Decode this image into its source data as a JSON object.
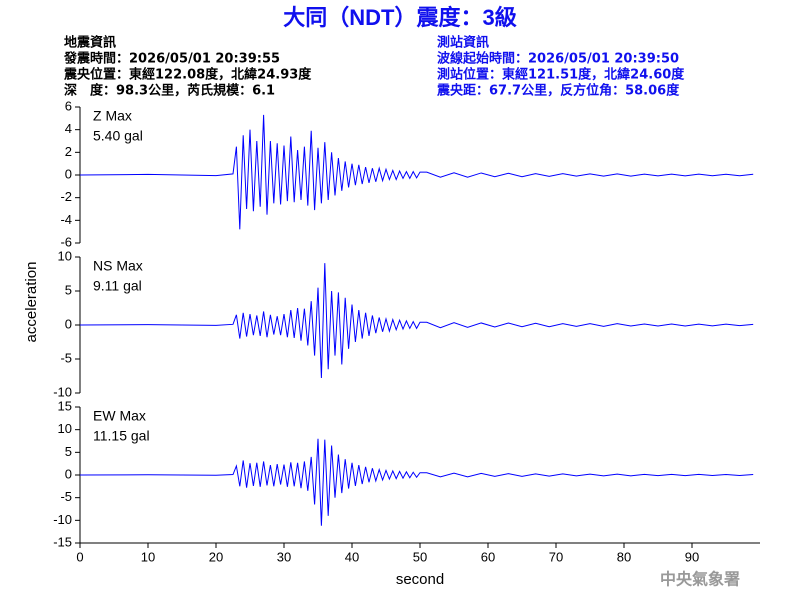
{
  "title": "大同（NDT）震度：3級",
  "event_info": {
    "heading": "地震資訊",
    "lines": [
      "發震時間：2026/05/01 20:39:55",
      "震央位置：東經122.08度，北緯24.93度",
      "深　度：98.3公里，芮氏規模：6.1"
    ]
  },
  "station_info": {
    "heading": "測站資訊",
    "lines": [
      "波線起始時間：2026/05/01 20:39:50",
      "測站位置：東經121.51度，北緯24.60度",
      "震央距：67.7公里，反方位角：58.06度"
    ]
  },
  "y_label": "acceleration",
  "credit": "中央氣象署",
  "chart_data": [
    {
      "type": "line",
      "annotation_name": "Z Max",
      "annotation_value": "5.40 gal",
      "color": "#0000ff",
      "annotation_color": "#ee0000",
      "xlim": [
        0,
        100
      ],
      "ylim": [
        -6,
        6
      ],
      "yticks": [
        -6,
        -4,
        -2,
        0,
        2,
        4,
        6
      ],
      "x": [
        0,
        10,
        20,
        22.5,
        23,
        23.5,
        24,
        24.5,
        25,
        25.5,
        26,
        26.5,
        27,
        27.5,
        28,
        28.5,
        29,
        29.5,
        30,
        30.5,
        31,
        31.5,
        32,
        32.5,
        33,
        33.5,
        34,
        34.5,
        35,
        35.5,
        36,
        36.5,
        37,
        37.5,
        38,
        38.5,
        39,
        39.5,
        40,
        40.5,
        41,
        41.5,
        42,
        42.5,
        43,
        43.5,
        44,
        44.5,
        45,
        45.5,
        46,
        46.5,
        47,
        47.5,
        48,
        48.5,
        49,
        49.5,
        50,
        51,
        53,
        55,
        57,
        59,
        61,
        63,
        65,
        67,
        69,
        71,
        73,
        75,
        77,
        79,
        81,
        83,
        85,
        87,
        89,
        91,
        93,
        95,
        97,
        99
      ],
      "values": [
        0,
        0.05,
        -0.05,
        0.1,
        2.5,
        -4.8,
        3.5,
        -3,
        4,
        -3.2,
        3,
        -2.8,
        5.3,
        -3.5,
        3,
        -2.5,
        2.8,
        -2.6,
        2.6,
        -2.3,
        3.4,
        -2.4,
        2.2,
        -2.2,
        2.5,
        -2.7,
        3.9,
        -3.1,
        2.4,
        -2.5,
        2.9,
        -2.2,
        2,
        -1.8,
        1.5,
        -1.4,
        1.2,
        -1.1,
        1,
        -0.9,
        0.9,
        -0.8,
        0.7,
        -0.7,
        0.6,
        -0.6,
        0.6,
        -0.5,
        0.5,
        -0.4,
        0.4,
        -0.4,
        0.35,
        -0.3,
        0.3,
        -0.3,
        0.3,
        -0.25,
        0.25,
        0.25,
        -0.2,
        0.2,
        -0.2,
        0.18,
        -0.15,
        0.15,
        -0.15,
        0.12,
        -0.12,
        0.12,
        -0.1,
        0.1,
        -0.1,
        0.1,
        -0.1,
        0.08,
        -0.08,
        0.08,
        -0.08,
        0.08,
        -0.07,
        0.07,
        -0.07,
        0.07
      ]
    },
    {
      "type": "line",
      "annotation_name": "NS Max",
      "annotation_value": "9.11 gal",
      "color": "#0000ff",
      "annotation_color": "#ee0000",
      "xlim": [
        0,
        100
      ],
      "ylim": [
        -10,
        10
      ],
      "yticks": [
        -10,
        -5,
        0,
        5,
        10
      ],
      "x": [
        0,
        10,
        20,
        22.5,
        23,
        23.5,
        24,
        24.5,
        25,
        25.5,
        26,
        26.5,
        27,
        27.5,
        28,
        28.5,
        29,
        29.5,
        30,
        30.5,
        31,
        31.5,
        32,
        32.5,
        33,
        33.5,
        34,
        34.5,
        35,
        35.5,
        36,
        36.5,
        37,
        37.5,
        38,
        38.5,
        39,
        39.5,
        40,
        40.5,
        41,
        41.5,
        42,
        42.5,
        43,
        43.5,
        44,
        44.5,
        45,
        45.5,
        46,
        46.5,
        47,
        47.5,
        48,
        48.5,
        49,
        49.5,
        50,
        51,
        53,
        55,
        57,
        59,
        61,
        63,
        65,
        67,
        69,
        71,
        73,
        75,
        77,
        79,
        81,
        83,
        85,
        87,
        89,
        91,
        93,
        95,
        97,
        99
      ],
      "values": [
        0,
        0.05,
        -0.05,
        0.1,
        1.5,
        -2,
        1.8,
        -1.7,
        1.6,
        -1.5,
        1.4,
        -1.6,
        2,
        -1.8,
        1.5,
        -1.4,
        1.3,
        -1.5,
        1.6,
        -1.8,
        2.2,
        -1.9,
        2.5,
        -2.3,
        2.4,
        -3,
        3.5,
        -4.5,
        5.5,
        -7.8,
        9.1,
        -6.5,
        5,
        -4.5,
        4.8,
        -5.8,
        4,
        -3.5,
        3,
        -2.5,
        2.2,
        -2,
        1.8,
        -1.6,
        1.4,
        -1.2,
        1.1,
        -1,
        0.9,
        -0.9,
        0.8,
        -0.7,
        0.7,
        -0.6,
        0.6,
        -0.5,
        0.5,
        -0.5,
        0.4,
        0.4,
        -0.4,
        0.35,
        -0.35,
        0.3,
        -0.3,
        0.3,
        -0.25,
        0.25,
        -0.25,
        0.2,
        -0.2,
        0.2,
        -0.2,
        0.2,
        -0.15,
        0.15,
        -0.15,
        0.15,
        -0.15,
        0.12,
        -0.12,
        0.12,
        -0.1,
        0.1
      ]
    },
    {
      "type": "line",
      "annotation_name": "EW Max",
      "annotation_value": "11.15 gal",
      "color": "#0000ff",
      "annotation_color": "#ee0000",
      "xlim": [
        0,
        100
      ],
      "ylim": [
        -15,
        15
      ],
      "yticks": [
        -15,
        -10,
        -5,
        0,
        5,
        10,
        15
      ],
      "xticks": [
        0,
        10,
        20,
        30,
        40,
        50,
        60,
        70,
        80,
        90
      ],
      "x_label": "second",
      "x": [
        0,
        10,
        20,
        22.5,
        23,
        23.5,
        24,
        24.5,
        25,
        25.5,
        26,
        26.5,
        27,
        27.5,
        28,
        28.5,
        29,
        29.5,
        30,
        30.5,
        31,
        31.5,
        32,
        32.5,
        33,
        33.5,
        34,
        34.5,
        35,
        35.5,
        36,
        36.5,
        37,
        37.5,
        38,
        38.5,
        39,
        39.5,
        40,
        40.5,
        41,
        41.5,
        42,
        42.5,
        43,
        43.5,
        44,
        44.5,
        45,
        45.5,
        46,
        46.5,
        47,
        47.5,
        48,
        48.5,
        49,
        49.5,
        50,
        51,
        53,
        55,
        57,
        59,
        61,
        63,
        65,
        67,
        69,
        71,
        73,
        75,
        77,
        79,
        81,
        83,
        85,
        87,
        89,
        91,
        93,
        95,
        97,
        99
      ],
      "values": [
        0,
        0.05,
        -0.05,
        0.1,
        2,
        -2.5,
        3.2,
        -2.8,
        2.6,
        -2.4,
        2.7,
        -2.6,
        3,
        -2.3,
        2.2,
        -2.5,
        2.4,
        -2.1,
        2.3,
        -2.6,
        2.8,
        -2.5,
        2.7,
        -2.9,
        3,
        -3.5,
        4,
        -6.5,
        8,
        -11.2,
        7.8,
        -9,
        6.5,
        -5,
        4.5,
        -4,
        3.5,
        -3,
        2.7,
        -2.4,
        2.2,
        -2,
        1.8,
        -1.6,
        1.5,
        -1.3,
        1.2,
        -1.1,
        1,
        -0.9,
        0.9,
        -0.8,
        0.8,
        -0.7,
        0.7,
        -0.6,
        0.6,
        -0.5,
        0.5,
        0.5,
        -0.4,
        0.4,
        -0.4,
        0.35,
        -0.3,
        0.3,
        -0.3,
        0.25,
        -0.25,
        0.25,
        -0.2,
        0.2,
        -0.2,
        0.2,
        -0.2,
        0.15,
        -0.15,
        0.15,
        -0.15,
        0.15,
        -0.12,
        0.12,
        -0.12,
        0.1
      ]
    }
  ]
}
